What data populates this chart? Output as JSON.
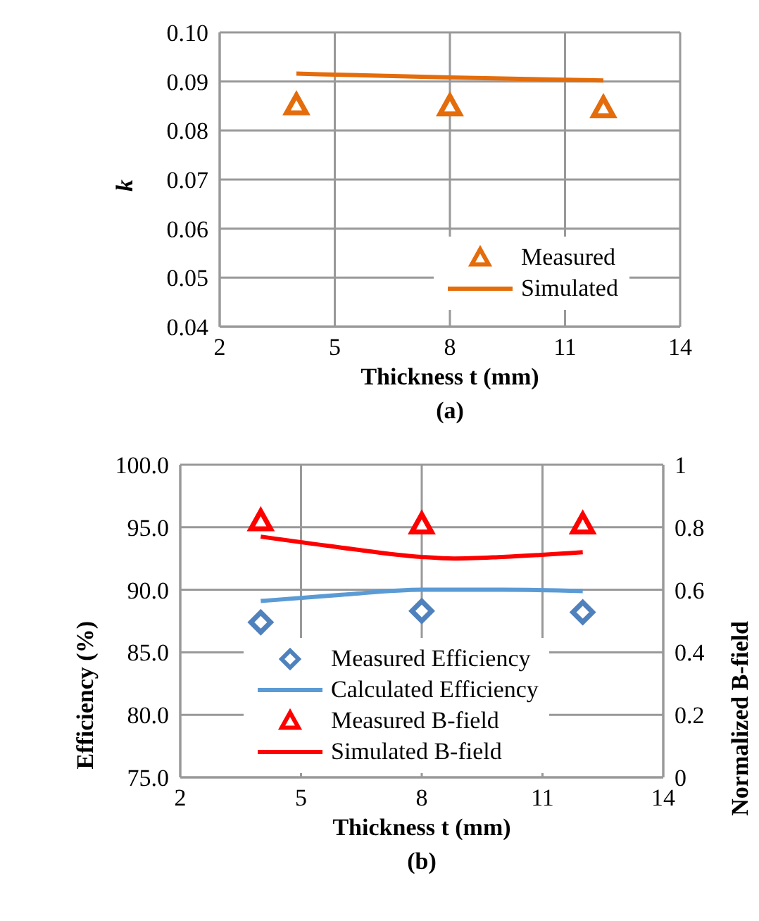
{
  "chart_data": [
    {
      "type": "scatter",
      "ylabel": "k",
      "xlabel": "Thickness t (mm)",
      "annotations": [
        "(a)"
      ],
      "xlim": [
        2,
        14
      ],
      "xticks": [
        2,
        5,
        8,
        11,
        14
      ],
      "ylim": [
        0.04,
        0.1
      ],
      "yticks": [
        {
          "value": 0.04,
          "label": "0.04"
        },
        {
          "value": 0.05,
          "label": "0.05"
        },
        {
          "value": 0.06,
          "label": "0.06"
        },
        {
          "value": 0.07,
          "label": "0.07"
        },
        {
          "value": 0.08,
          "label": "0.08"
        },
        {
          "value": 0.09,
          "label": "0.09"
        },
        {
          "value": 0.1,
          "label": "0.10"
        }
      ],
      "grid": true,
      "legend": "bottom right",
      "series": [
        {
          "name": "Measured",
          "marker": "triangle",
          "color": "#e46c0a",
          "x": [
            4,
            8,
            12
          ],
          "values": [
            0.0852,
            0.085,
            0.0846
          ]
        },
        {
          "name": "Simulated",
          "type": "line",
          "marker": "none",
          "color": "#e46c0a",
          "x": [
            4,
            8,
            12
          ],
          "values": [
            0.0916,
            0.0908,
            0.0902
          ]
        }
      ]
    },
    {
      "type": "scatter",
      "ylabel": "Efficiency (%)",
      "y2label": "Normalized B-field",
      "xlabel": "Thickness t (mm)",
      "annotations": [
        "(b)"
      ],
      "xlim": [
        2,
        14
      ],
      "xticks": [
        2,
        5,
        8,
        11,
        14
      ],
      "ylim": [
        75,
        100
      ],
      "yticks": [
        {
          "value": 75,
          "label": "75.0"
        },
        {
          "value": 80,
          "label": "80.0"
        },
        {
          "value": 85,
          "label": "85.0"
        },
        {
          "value": 90,
          "label": "90.0"
        },
        {
          "value": 95,
          "label": "95.0"
        },
        {
          "value": 100,
          "label": "100.0"
        }
      ],
      "y2lim": [
        0,
        1
      ],
      "y2ticks": [
        0,
        0.2,
        0.4,
        0.6,
        0.8,
        1
      ],
      "grid": true,
      "legend": "bottom",
      "series": [
        {
          "name": "Measured Efficiency",
          "marker": "diamond",
          "color": "#4f81bd",
          "x": [
            4,
            8,
            12
          ],
          "values": [
            87.4,
            88.3,
            88.2
          ]
        },
        {
          "name": "Calculated Efficiency",
          "type": "line",
          "marker": "none",
          "color": "#5b9bd5",
          "x": [
            4,
            6,
            8,
            9,
            10,
            12
          ],
          "values": [
            89.1,
            89.6,
            90.0,
            90.0,
            90.0,
            89.9
          ]
        },
        {
          "name": "Measured B-field",
          "marker": "triangle",
          "color": "#ff0000",
          "axis": "y2",
          "x": [
            4,
            8,
            12
          ],
          "values": [
            0.82,
            0.81,
            0.81
          ]
        },
        {
          "name": "Simulated B-field",
          "type": "line",
          "marker": "none",
          "color": "#ff0000",
          "axis": "y2",
          "x": [
            4,
            6,
            8,
            8.8,
            10,
            12
          ],
          "values": [
            0.77,
            0.735,
            0.705,
            0.7,
            0.705,
            0.72
          ]
        }
      ]
    }
  ]
}
